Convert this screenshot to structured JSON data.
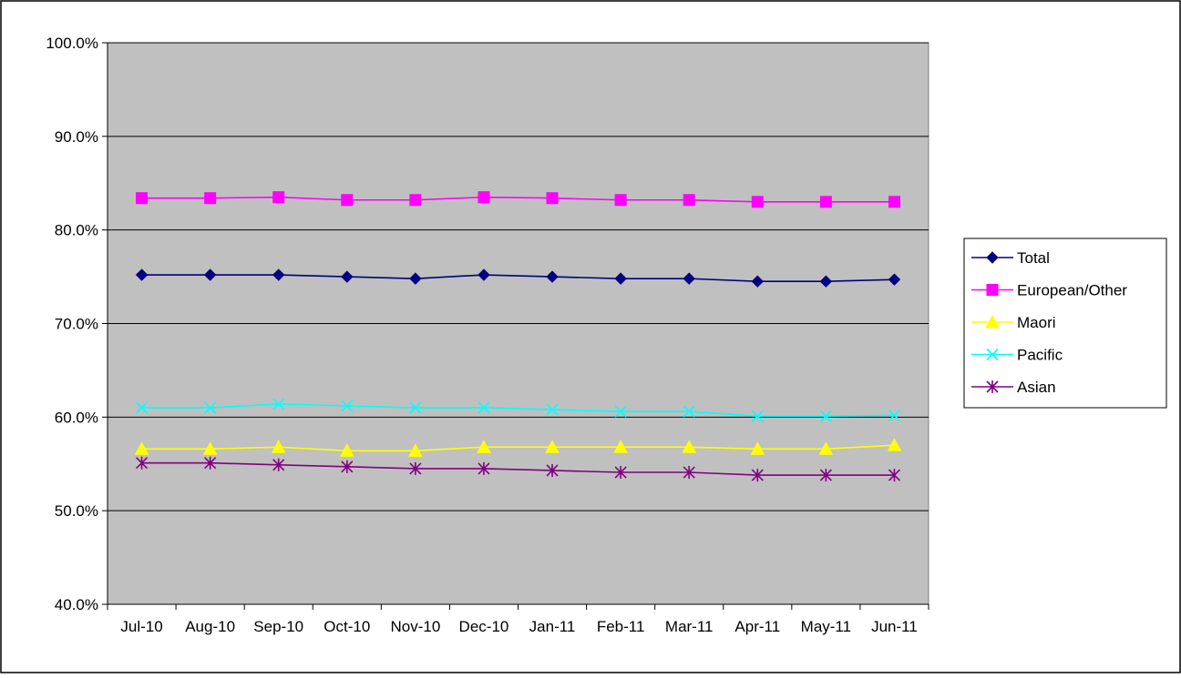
{
  "chart_data": {
    "type": "line",
    "title": "",
    "xlabel": "",
    "ylabel": "",
    "ylim": [
      40,
      100
    ],
    "yticks": [
      "40.0%",
      "50.0%",
      "60.0%",
      "70.0%",
      "80.0%",
      "90.0%",
      "100.0%"
    ],
    "ytick_values": [
      40,
      50,
      60,
      70,
      80,
      90,
      100
    ],
    "grid": true,
    "plot_background": "#c0c0c0",
    "legend_position": "right",
    "categories": [
      "Jul-10",
      "Aug-10",
      "Sep-10",
      "Oct-10",
      "Nov-10",
      "Dec-10",
      "Jan-11",
      "Feb-11",
      "Mar-11",
      "Apr-11",
      "May-11",
      "Jun-11"
    ],
    "series": [
      {
        "name": "Total",
        "color": "#000080",
        "marker": "diamond",
        "values": [
          75.2,
          75.2,
          75.2,
          75.0,
          74.8,
          75.2,
          75.0,
          74.8,
          74.8,
          74.5,
          74.5,
          74.7
        ]
      },
      {
        "name": "European/Other",
        "color": "#ff00ff",
        "marker": "square",
        "values": [
          83.4,
          83.4,
          83.5,
          83.2,
          83.2,
          83.5,
          83.4,
          83.2,
          83.2,
          83.0,
          83.0,
          83.0
        ]
      },
      {
        "name": "Maori",
        "color": "#ffff00",
        "marker": "triangle",
        "values": [
          56.6,
          56.6,
          56.8,
          56.4,
          56.4,
          56.8,
          56.8,
          56.8,
          56.8,
          56.6,
          56.6,
          57.0
        ]
      },
      {
        "name": "Pacific",
        "color": "#00ffff",
        "marker": "x",
        "values": [
          61.0,
          61.0,
          61.4,
          61.2,
          61.0,
          61.0,
          60.8,
          60.6,
          60.6,
          60.1,
          60.1,
          60.2
        ]
      },
      {
        "name": "Asian",
        "color": "#800080",
        "marker": "star",
        "values": [
          55.1,
          55.1,
          54.9,
          54.7,
          54.5,
          54.5,
          54.3,
          54.1,
          54.1,
          53.8,
          53.8,
          53.8
        ]
      }
    ]
  }
}
